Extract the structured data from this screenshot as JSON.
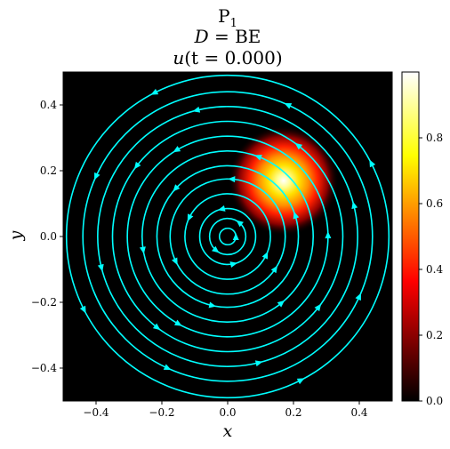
{
  "title": {
    "line1_main": "P",
    "line1_sub": "1",
    "line2_script": "D",
    "line2_rest": " = BE",
    "line3_var": "u",
    "line3_rest": "(t = 0.000)"
  },
  "chart_data": {
    "type": "heatmap",
    "title": "P1 / D = BE / u(t = 0.000)",
    "xlabel": "x",
    "ylabel": "y",
    "xlim": [
      -0.5,
      0.5
    ],
    "ylim": [
      -0.5,
      0.5
    ],
    "x_ticks": [
      -0.4,
      -0.2,
      0.0,
      0.2,
      0.4
    ],
    "y_ticks": [
      -0.4,
      -0.2,
      0.0,
      0.2,
      0.4
    ],
    "x_tick_labels": [
      "−0.4",
      "−0.2",
      "0.0",
      "0.2",
      "0.4"
    ],
    "y_tick_labels": [
      "−0.4",
      "−0.2",
      "0.0",
      "0.2",
      "0.4"
    ],
    "colormap": "hot",
    "colorbar": {
      "range": [
        0.0,
        1.0
      ],
      "ticks": [
        0.0,
        0.2,
        0.4,
        0.6,
        0.8
      ],
      "tick_labels": [
        "0.0",
        "0.2",
        "0.4",
        "0.6",
        "0.8"
      ]
    },
    "field": {
      "shape": "gaussian blob",
      "center": [
        0.17,
        0.17
      ],
      "peak": 1.0,
      "background": 0.0
    },
    "streamlines": {
      "color": "#00ffff",
      "pattern": "concentric circles about origin",
      "rotation": "counter-clockwise",
      "radii": [
        0.025,
        0.055,
        0.085,
        0.13,
        0.175,
        0.215,
        0.26,
        0.305,
        0.35,
        0.395,
        0.44,
        0.49
      ]
    },
    "grid": false
  }
}
